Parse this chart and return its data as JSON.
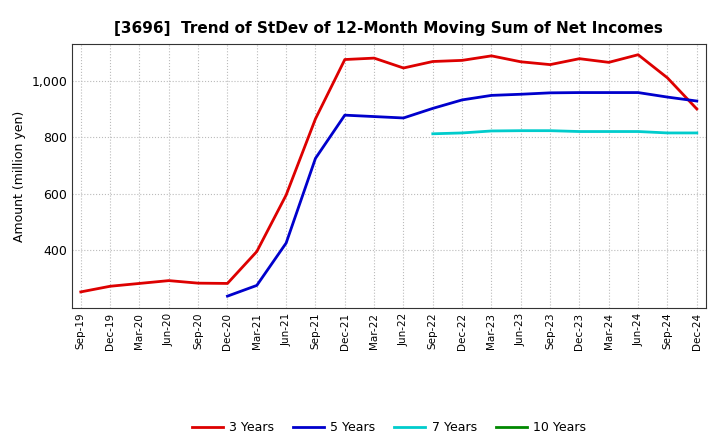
{
  "title": "[3696]  Trend of StDev of 12-Month Moving Sum of Net Incomes",
  "ylabel": "Amount (million yen)",
  "background_color": "#ffffff",
  "grid_color": "#aaaaaa",
  "ylim": [
    195,
    1130
  ],
  "yticks": [
    400,
    600,
    800,
    1000
  ],
  "ytick_labels": [
    "400",
    "600",
    "800",
    "1,000"
  ],
  "x_labels": [
    "Sep-19",
    "Dec-19",
    "Mar-20",
    "Jun-20",
    "Sep-20",
    "Dec-20",
    "Mar-21",
    "Jun-21",
    "Sep-21",
    "Dec-21",
    "Mar-22",
    "Jun-22",
    "Sep-22",
    "Dec-22",
    "Mar-23",
    "Jun-23",
    "Sep-23",
    "Dec-23",
    "Mar-24",
    "Jun-24",
    "Sep-24",
    "Dec-24"
  ],
  "series_3yr": {
    "color": "#dd0000",
    "label": "3 Years",
    "linewidth": 2.0,
    "x": [
      0,
      1,
      2,
      3,
      4,
      5,
      6,
      7,
      8,
      9,
      10,
      11,
      12,
      13,
      14,
      15,
      16,
      17,
      18,
      19,
      20,
      21
    ],
    "y": [
      252,
      272,
      282,
      292,
      283,
      282,
      395,
      595,
      865,
      1075,
      1080,
      1045,
      1068,
      1072,
      1088,
      1067,
      1057,
      1078,
      1065,
      1092,
      1010,
      900
    ]
  },
  "series_5yr": {
    "color": "#0000cc",
    "label": "5 Years",
    "linewidth": 2.0,
    "x": [
      5,
      6,
      7,
      8,
      9,
      10,
      11,
      12,
      13,
      14,
      15,
      16,
      17,
      18,
      19,
      20,
      21
    ],
    "y": [
      237,
      275,
      425,
      725,
      878,
      873,
      868,
      902,
      932,
      948,
      952,
      957,
      958,
      958,
      958,
      942,
      928
    ]
  },
  "series_7yr": {
    "color": "#00cccc",
    "label": "7 Years",
    "linewidth": 2.0,
    "x": [
      12,
      13,
      14,
      15,
      16,
      17,
      18,
      19,
      20,
      21
    ],
    "y": [
      812,
      815,
      822,
      823,
      823,
      820,
      820,
      820,
      815,
      815
    ]
  },
  "series_10yr": {
    "color": "#008800",
    "label": "10 Years",
    "linewidth": 2.0,
    "x": [],
    "y": []
  },
  "legend_colors": [
    "#dd0000",
    "#0000cc",
    "#00cccc",
    "#008800"
  ],
  "legend_labels": [
    "3 Years",
    "5 Years",
    "7 Years",
    "10 Years"
  ]
}
